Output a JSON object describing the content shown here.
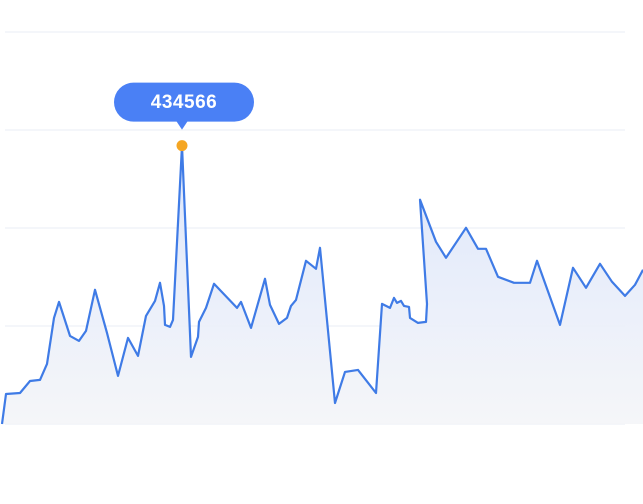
{
  "chart_data": {
    "type": "line",
    "color": "#3f7be6",
    "highlight_color": "#f5a623",
    "area": true,
    "grid": true,
    "xlim": [
      0,
      643
    ],
    "x": [
      2,
      6,
      20,
      30,
      40,
      47,
      54,
      59,
      70,
      79,
      86,
      95,
      107,
      118,
      128,
      138,
      146,
      155,
      160,
      164,
      165,
      170,
      173,
      182,
      191,
      198,
      199,
      206,
      214,
      237,
      241,
      251,
      265,
      270,
      279,
      287,
      291,
      296,
      306,
      316,
      320,
      335,
      345,
      358,
      376,
      382,
      390,
      394,
      397,
      401,
      404,
      409,
      410,
      418,
      426,
      427,
      420,
      436,
      446,
      466,
      478,
      486,
      498,
      514,
      530,
      537,
      560,
      573,
      586,
      600,
      612,
      625,
      635,
      643
    ],
    "values": [
      0,
      46890,
      48453,
      67209,
      68772,
      93780,
      165678,
      190686,
      137544,
      129729,
      145359,
      209442,
      142233,
      75024,
      134418,
      106284,
      168804,
      192249,
      220383,
      184434,
      154737,
      151611,
      162552,
      434566,
      104721,
      135981,
      159426,
      181308,
      218820,
      181308,
      190686,
      150048,
      226635,
      185997,
      156300,
      165678,
      184434,
      193812,
      254769,
      242265,
      275088,
      32823,
      81276,
      84402,
      48453,
      187560,
      181308,
      196938,
      189123,
      192249,
      184434,
      182871,
      165678,
      157863,
      159426,
      187560,
      350112,
      284466,
      259458,
      306348,
      273525,
      273525,
      229761,
      220383,
      220383,
      254769,
      154737,
      243828,
      212568,
      250080,
      221946,
      200064,
      217257,
      240702
    ],
    "highlight_index": 23,
    "ylim": [
      0,
      612000
    ],
    "yticks": [
      0,
      153000,
      306000,
      459000,
      612000
    ]
  }
}
